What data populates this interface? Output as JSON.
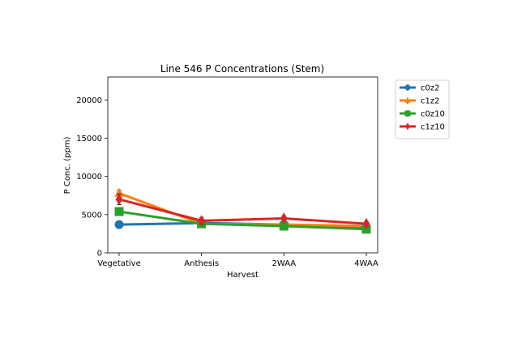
{
  "chart_data": {
    "type": "line",
    "title": "Line 546 P Concentrations (Stem)",
    "xlabel": "Harvest",
    "ylabel": "P Conc. (ppm)",
    "categories": [
      "Vegetative",
      "Anthesis",
      "2WAA",
      "4WAA"
    ],
    "ylim": [
      0,
      23000
    ],
    "yticks": [
      0,
      5000,
      10000,
      15000,
      20000
    ],
    "ytick_labels": [
      "0",
      "5000",
      "10000",
      "15000",
      "20000"
    ],
    "grid": false,
    "legend_position": "outside-right",
    "series": [
      {
        "name": "c0z2",
        "values": [
          3700,
          3900,
          3700,
          3300
        ],
        "errors": [
          250,
          400,
          300,
          250
        ],
        "color": "#1f77b4",
        "marker": "circle"
      },
      {
        "name": "c1z2",
        "values": [
          7800,
          3800,
          3700,
          3500
        ],
        "errors": [
          400,
          500,
          350,
          300
        ],
        "color": "#ff7f0e",
        "marker": "triangle-up"
      },
      {
        "name": "c0z10",
        "values": [
          5400,
          3800,
          3500,
          3100
        ],
        "errors": [
          300,
          400,
          300,
          250
        ],
        "color": "#2ca02c",
        "marker": "square"
      },
      {
        "name": "c1z10",
        "values": [
          7000,
          4200,
          4500,
          3800
        ],
        "errors": [
          700,
          400,
          350,
          300
        ],
        "color": "#d62728",
        "marker": "diamond"
      }
    ]
  }
}
